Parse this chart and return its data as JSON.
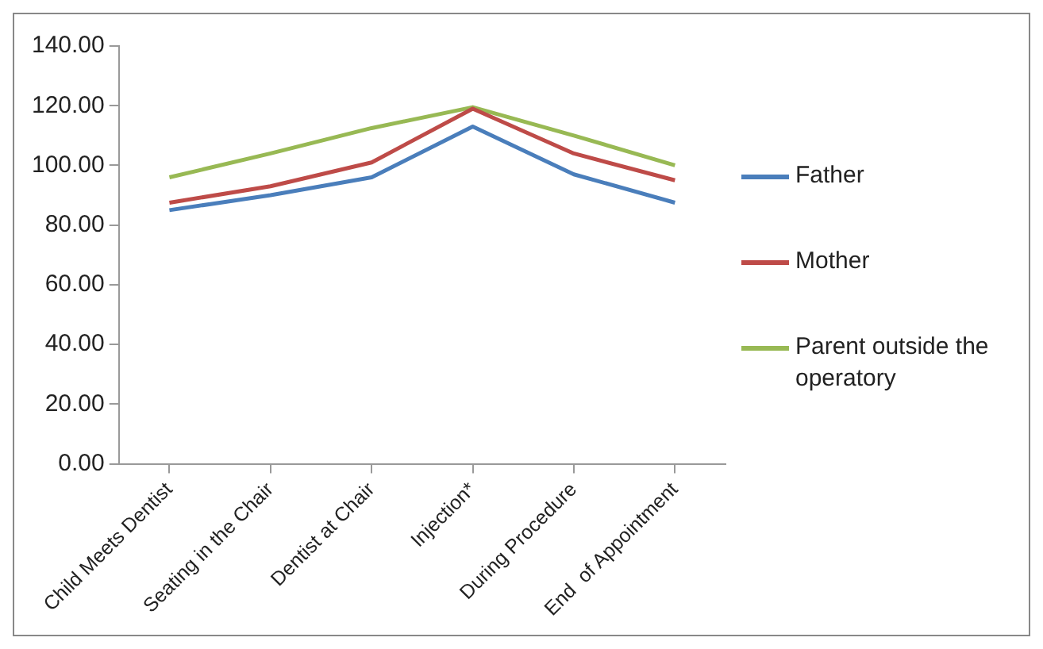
{
  "chart_data": {
    "type": "line",
    "categories": [
      "Child Meets Dentist",
      "Seating in the Chair",
      "Dentist at Chair",
      "Injection*",
      "During Procedure",
      "End  of Appointment"
    ],
    "series": [
      {
        "name": "Father",
        "color": "#4a7ebb",
        "values": [
          85,
          90,
          96,
          113,
          97,
          87.5
        ]
      },
      {
        "name": "Mother",
        "color": "#be4b48",
        "values": [
          87.5,
          93,
          101,
          119,
          104,
          95
        ]
      },
      {
        "name": "Parent outside the operatory",
        "color": "#98b954",
        "values": [
          96,
          104,
          112.5,
          119.5,
          110,
          100
        ]
      }
    ],
    "ylim": [
      0,
      140
    ],
    "yticks": [
      {
        "value": 0,
        "label": "0.00"
      },
      {
        "value": 20,
        "label": "20.00"
      },
      {
        "value": 40,
        "label": "40.00"
      },
      {
        "value": 60,
        "label": "60.00"
      },
      {
        "value": 80,
        "label": "80.00"
      },
      {
        "value": 100,
        "label": "100.00"
      },
      {
        "value": 120,
        "label": "120.00"
      },
      {
        "value": 140,
        "label": "140.00"
      }
    ],
    "grid": false,
    "legend": "right",
    "marker": "none",
    "line_style": "solid"
  }
}
